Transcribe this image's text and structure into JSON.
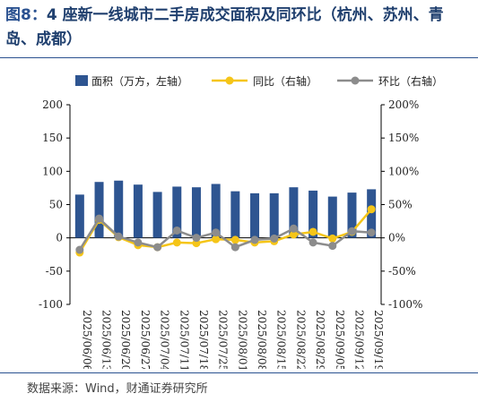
{
  "header": {
    "figure_label": "图8：",
    "title": "4 座新一线城市二手房成交面积及同环比（杭州、苏州、青岛、成都）"
  },
  "footer": {
    "source": "数据来源：Wind，财通证券研究所"
  },
  "colors": {
    "bar": "#2e5591",
    "yoy": "#f5c518",
    "mom": "#8c8c8c",
    "rule": "#2a5190"
  },
  "chart_data": {
    "type": "bar+line",
    "categories": [
      "2025/06/06",
      "2025/06/13",
      "2025/06/20",
      "2025/06/27",
      "2025/07/04",
      "2025/07/11",
      "2025/07/18",
      "2025/07/25",
      "2025/08/01",
      "2025/08/08",
      "2025/08/15",
      "2025/08/22",
      "2025/08/29",
      "2025/09/05",
      "2025/09/12",
      "2025/09/19"
    ],
    "series": [
      {
        "name": "面积（万方，左轴）",
        "type": "bar",
        "axis": "left",
        "values": [
          65,
          84,
          86,
          80,
          69,
          77,
          76,
          81,
          70,
          67,
          67,
          76,
          71,
          62,
          68,
          73
        ]
      },
      {
        "name": "同比（右轴）",
        "type": "line",
        "axis": "right",
        "values": [
          -22,
          27,
          1,
          -11,
          -14,
          -7,
          -8,
          -2,
          -3,
          -7,
          -5,
          5,
          9,
          -1,
          9,
          43
        ]
      },
      {
        "name": "环比（右轴）",
        "type": "line",
        "axis": "right",
        "values": [
          -18,
          29,
          2,
          -7,
          -14,
          11,
          0,
          8,
          -14,
          -3,
          -1,
          14,
          -7,
          -12,
          10,
          8
        ]
      }
    ],
    "y_left": {
      "min": -100,
      "max": 200,
      "ticks": [
        -100,
        -50,
        0,
        50,
        100,
        150,
        200
      ]
    },
    "y_right": {
      "min": -100,
      "max": 200,
      "ticks": [
        "-100%",
        "-50%",
        "0%",
        "50%",
        "100%",
        "150%",
        "200%"
      ]
    },
    "legend": "top",
    "grid": false
  }
}
